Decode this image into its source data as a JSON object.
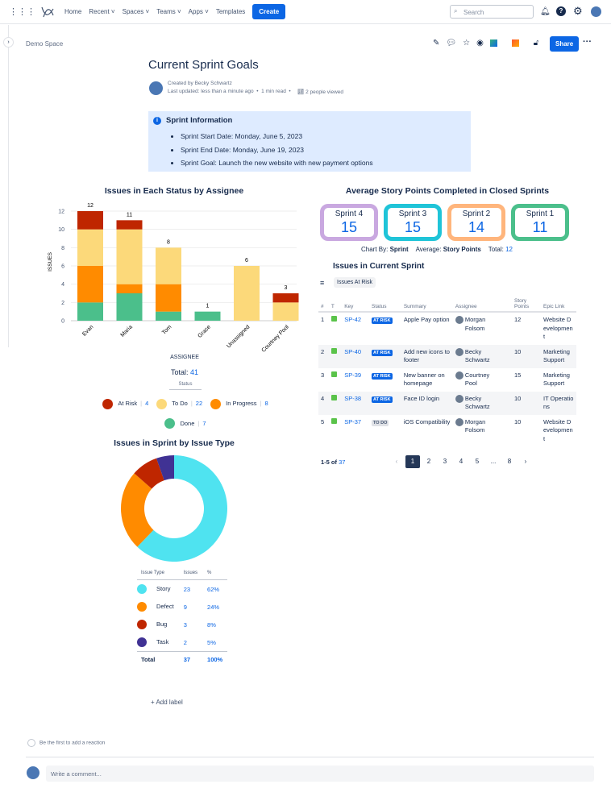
{
  "nav": {
    "items": [
      "Home",
      "Recent",
      "Spaces",
      "Teams",
      "Apps",
      "Templates"
    ],
    "create": "Create",
    "search_placeholder": "Search"
  },
  "breadcrumb": "Demo Space",
  "share": "Share",
  "page": {
    "title": "Current Sprint Goals",
    "created_by": "Created by Becky Schwartz",
    "meta": "Last updated: less than a minute ago  •  1 min read  •",
    "views": "2 people viewed"
  },
  "info": {
    "title": "Sprint Information",
    "items": [
      "Sprint Start Date: Monday, June 5, 2023",
      "Sprint End Date: Monday, June 19, 2023",
      "Sprint Goal: Launch the new website with new payment options"
    ]
  },
  "chart_data": [
    {
      "type": "bar",
      "stacked": true,
      "title": "Issues in Each Status by Assignee",
      "xlabel": "ASSIGNEE",
      "ylabel": "ISSUES",
      "ylim": [
        0,
        12
      ],
      "yticks": [
        0,
        2,
        4,
        6,
        8,
        10,
        12
      ],
      "categories": [
        "Evan",
        "Maria",
        "Tom",
        "Grace",
        "Unassigned",
        "Courtney Pool"
      ],
      "totals": [
        12,
        11,
        8,
        1,
        6,
        3
      ],
      "series": [
        {
          "name": "Done",
          "color": "#4bbf8b",
          "values": [
            2,
            3,
            1,
            1,
            0,
            0
          ]
        },
        {
          "name": "In Progress",
          "color": "#ff8b00",
          "values": [
            4,
            1,
            3,
            0,
            0,
            0
          ]
        },
        {
          "name": "To Do",
          "color": "#fcd97a",
          "values": [
            4,
            6,
            4,
            0,
            6,
            2
          ]
        },
        {
          "name": "At Risk",
          "color": "#bf2600",
          "values": [
            2,
            1,
            0,
            0,
            0,
            1
          ]
        }
      ],
      "total_label": "Total:",
      "total": 41,
      "legend_title": "Status",
      "legend": [
        {
          "name": "At Risk",
          "count": 4,
          "color": "#bf2600"
        },
        {
          "name": "To Do",
          "count": 22,
          "color": "#fcd97a"
        },
        {
          "name": "In Progress",
          "count": 8,
          "color": "#ff8b00"
        },
        {
          "name": "Done",
          "count": 7,
          "color": "#4bbf8b"
        }
      ]
    },
    {
      "type": "pie",
      "donut": true,
      "title": "Issues in Sprint by Issue Type",
      "headers": [
        "Issue Type",
        "Issues",
        "%"
      ],
      "slices": [
        {
          "name": "Story",
          "value": 23,
          "pct": "62%",
          "color": "#4fe3f0"
        },
        {
          "name": "Defect",
          "value": 9,
          "pct": "24%",
          "color": "#ff8b00"
        },
        {
          "name": "Bug",
          "value": 3,
          "pct": "8%",
          "color": "#bf2600"
        },
        {
          "name": "Task",
          "value": 2,
          "pct": "5%",
          "color": "#403294"
        }
      ],
      "total": {
        "name": "Total",
        "value": 37,
        "pct": "100%"
      }
    }
  ],
  "sprints": {
    "title": "Average Story Points Completed in Closed Sprints",
    "items": [
      {
        "name": "Sprint 4",
        "value": 15,
        "color": "#c9a8e0"
      },
      {
        "name": "Sprint 3",
        "value": 15,
        "color": "#1fc4d8"
      },
      {
        "name": "Sprint 2",
        "value": 14,
        "color": "#ffb57c"
      },
      {
        "name": "Sprint 1",
        "value": 11,
        "color": "#4bbf8b"
      }
    ],
    "chart_by_label": "Chart By:",
    "chart_by": "Sprint",
    "average_label": "Average:",
    "average": "Story Points",
    "total_label": "Total:",
    "total": "12"
  },
  "issues": {
    "title": "Issues in Current Sprint",
    "filter": "Issues At Risk",
    "headers": [
      "#",
      "T",
      "Key",
      "Status",
      "Summary",
      "Assignee",
      "Story Points",
      "Epic Link"
    ],
    "rows": [
      [
        "1",
        "",
        "SP-42",
        "AT RISK",
        "Apple Pay option",
        "Morgan Folsom",
        "12",
        "Website Development"
      ],
      [
        "2",
        "",
        "SP-40",
        "AT RISK",
        "Add new icons to footer",
        "Becky Schwartz",
        "10",
        "Marketing Support"
      ],
      [
        "3",
        "",
        "SP-39",
        "AT RISK",
        "New banner on homepage",
        "Courtney Pool",
        "15",
        "Marketing Support"
      ],
      [
        "4",
        "",
        "SP-38",
        "AT RISK",
        "Face ID login",
        "Becky Schwartz",
        "10",
        "IT Operations"
      ],
      [
        "5",
        "",
        "SP-37",
        "TO DO",
        "iOS Compatibility",
        "Morgan Folsom",
        "10",
        "Website Development"
      ]
    ],
    "range": "1-5 of",
    "count": "37",
    "pages": [
      "1",
      "2",
      "3",
      "4",
      "5",
      "...",
      "8"
    ]
  },
  "add_label": "+ Add label",
  "reaction": "Be the first to add a reaction",
  "comment_placeholder": "Write a comment..."
}
